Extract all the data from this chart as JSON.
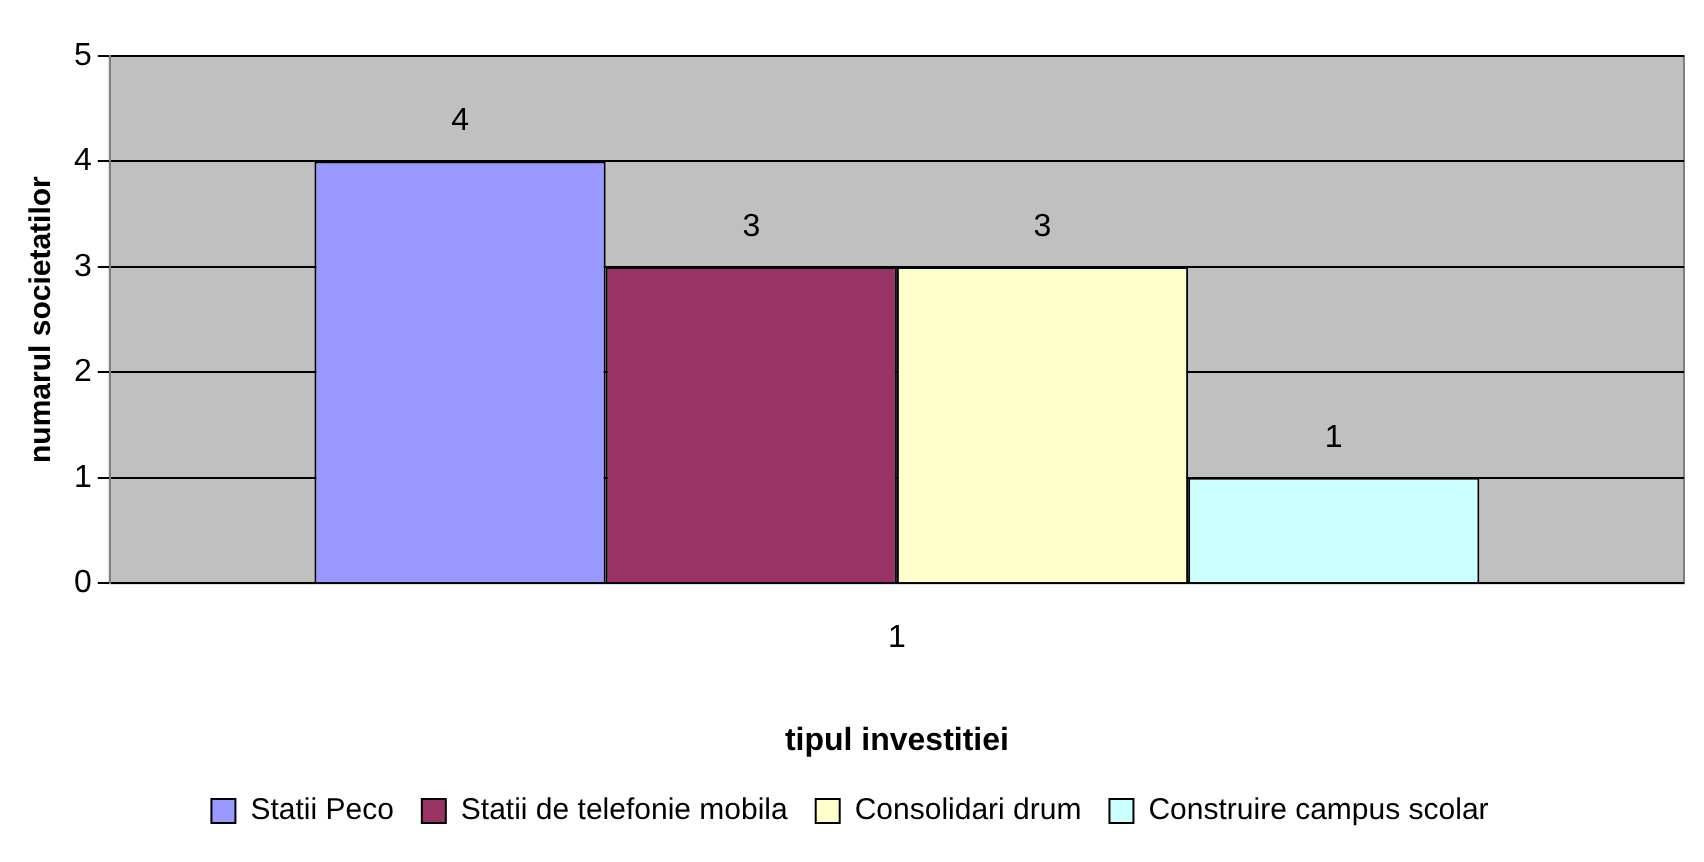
{
  "chart_data": {
    "type": "bar",
    "xlabel": "tipul investitiei",
    "ylabel": "numarul societatilor",
    "categories": [
      "1"
    ],
    "series": [
      {
        "name": "Statii Peco",
        "color": "#9999ff",
        "values": [
          4
        ]
      },
      {
        "name": "Statii de telefonie mobila",
        "color": "#993366",
        "values": [
          3
        ]
      },
      {
        "name": "Consolidari drum",
        "color": "#ffffcc",
        "values": [
          3
        ]
      },
      {
        "name": "Construire campus scolar",
        "color": "#ccffff",
        "values": [
          1
        ]
      }
    ],
    "ylim": [
      0,
      5
    ],
    "yticks": [
      0,
      1,
      2,
      3,
      4,
      5
    ],
    "grid": "y",
    "legend": "bottom",
    "data_labels": true
  }
}
